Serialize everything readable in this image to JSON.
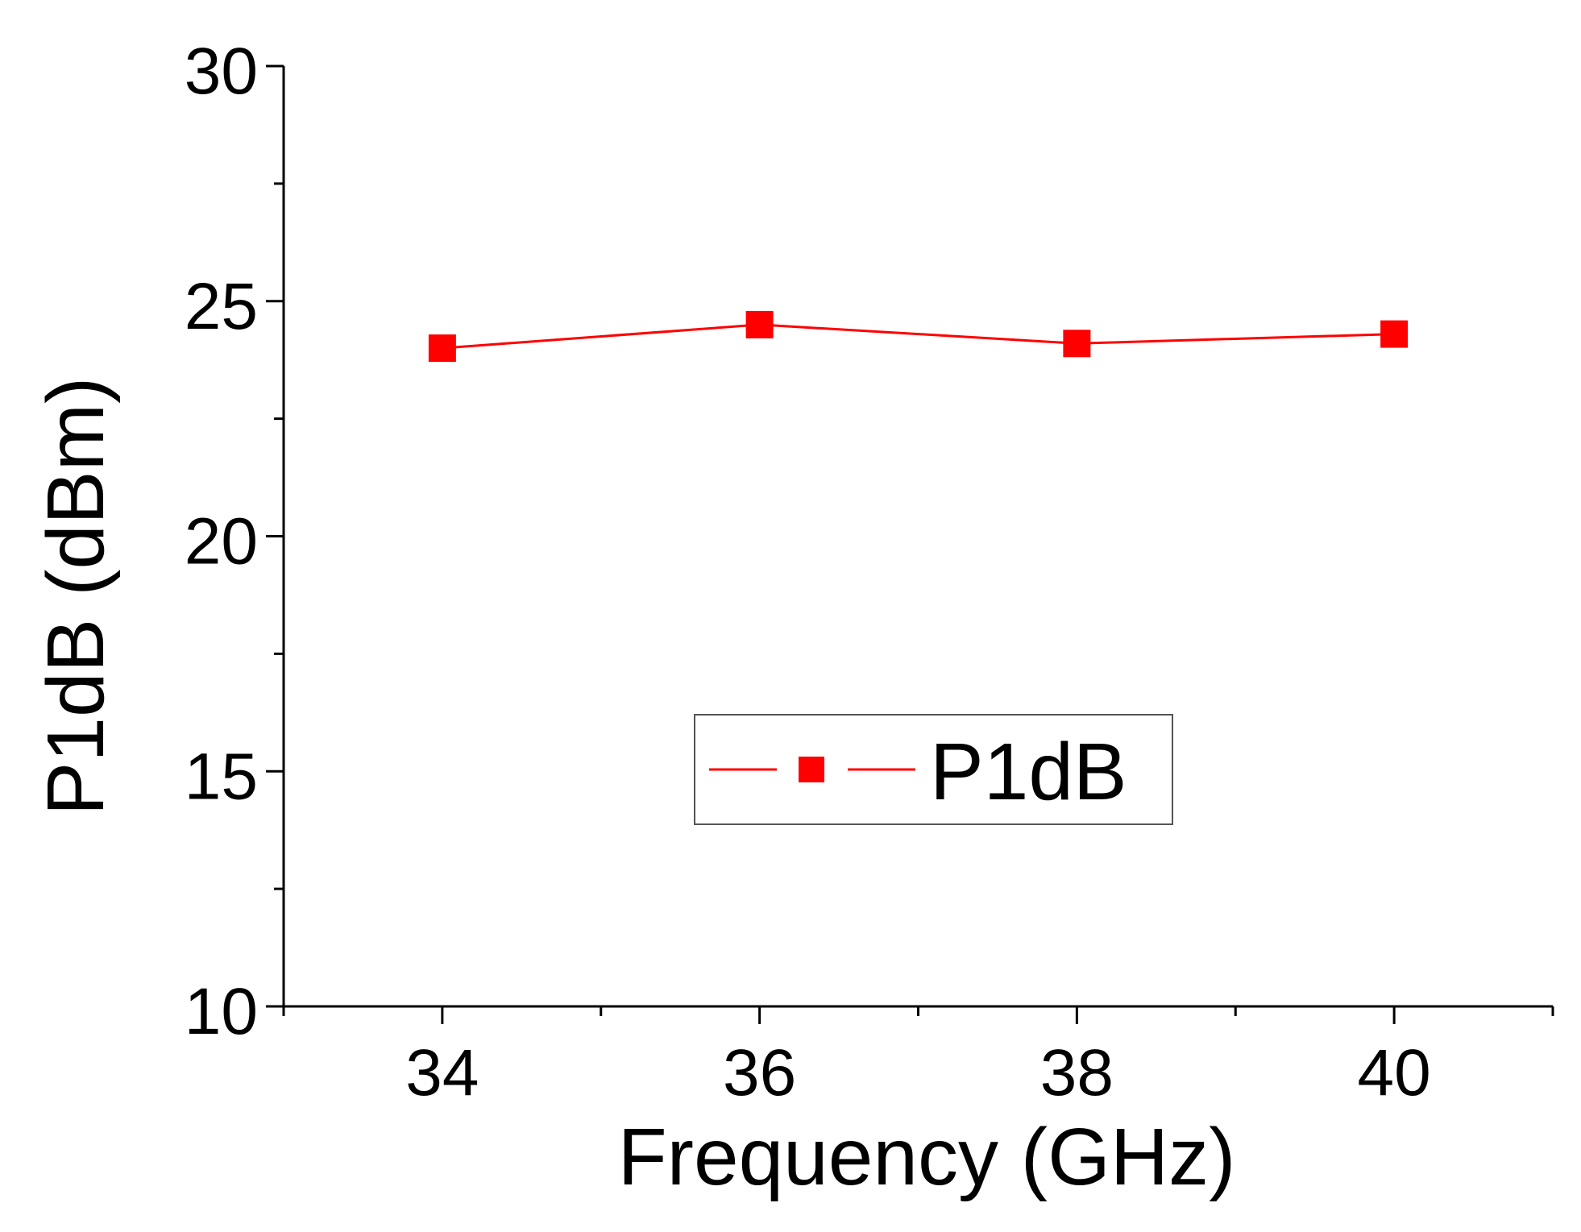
{
  "chart_data": {
    "type": "line",
    "title": "",
    "xlabel": "Frequency (GHz)",
    "ylabel": "P1dB (dBm)",
    "xlim": [
      33,
      41
    ],
    "ylim": [
      10,
      30
    ],
    "x_major_ticks": [
      34,
      36,
      38,
      40
    ],
    "x_minor_ticks": [
      33,
      35,
      37,
      39,
      41
    ],
    "y_major_ticks": [
      10,
      15,
      20,
      25,
      30
    ],
    "y_minor_ticks": [
      12.5,
      17.5,
      22.5,
      27.5
    ],
    "x_tick_labels": [
      "34",
      "36",
      "38",
      "40"
    ],
    "y_tick_labels": [
      "10",
      "15",
      "20",
      "25",
      "30"
    ],
    "grid": false,
    "legend_position": "lower-right",
    "series": [
      {
        "name": "P1dB",
        "color": "#ff0000",
        "marker": "square",
        "x": [
          34,
          36,
          38,
          40
        ],
        "y": [
          24.0,
          24.5,
          24.1,
          24.3
        ]
      }
    ]
  }
}
